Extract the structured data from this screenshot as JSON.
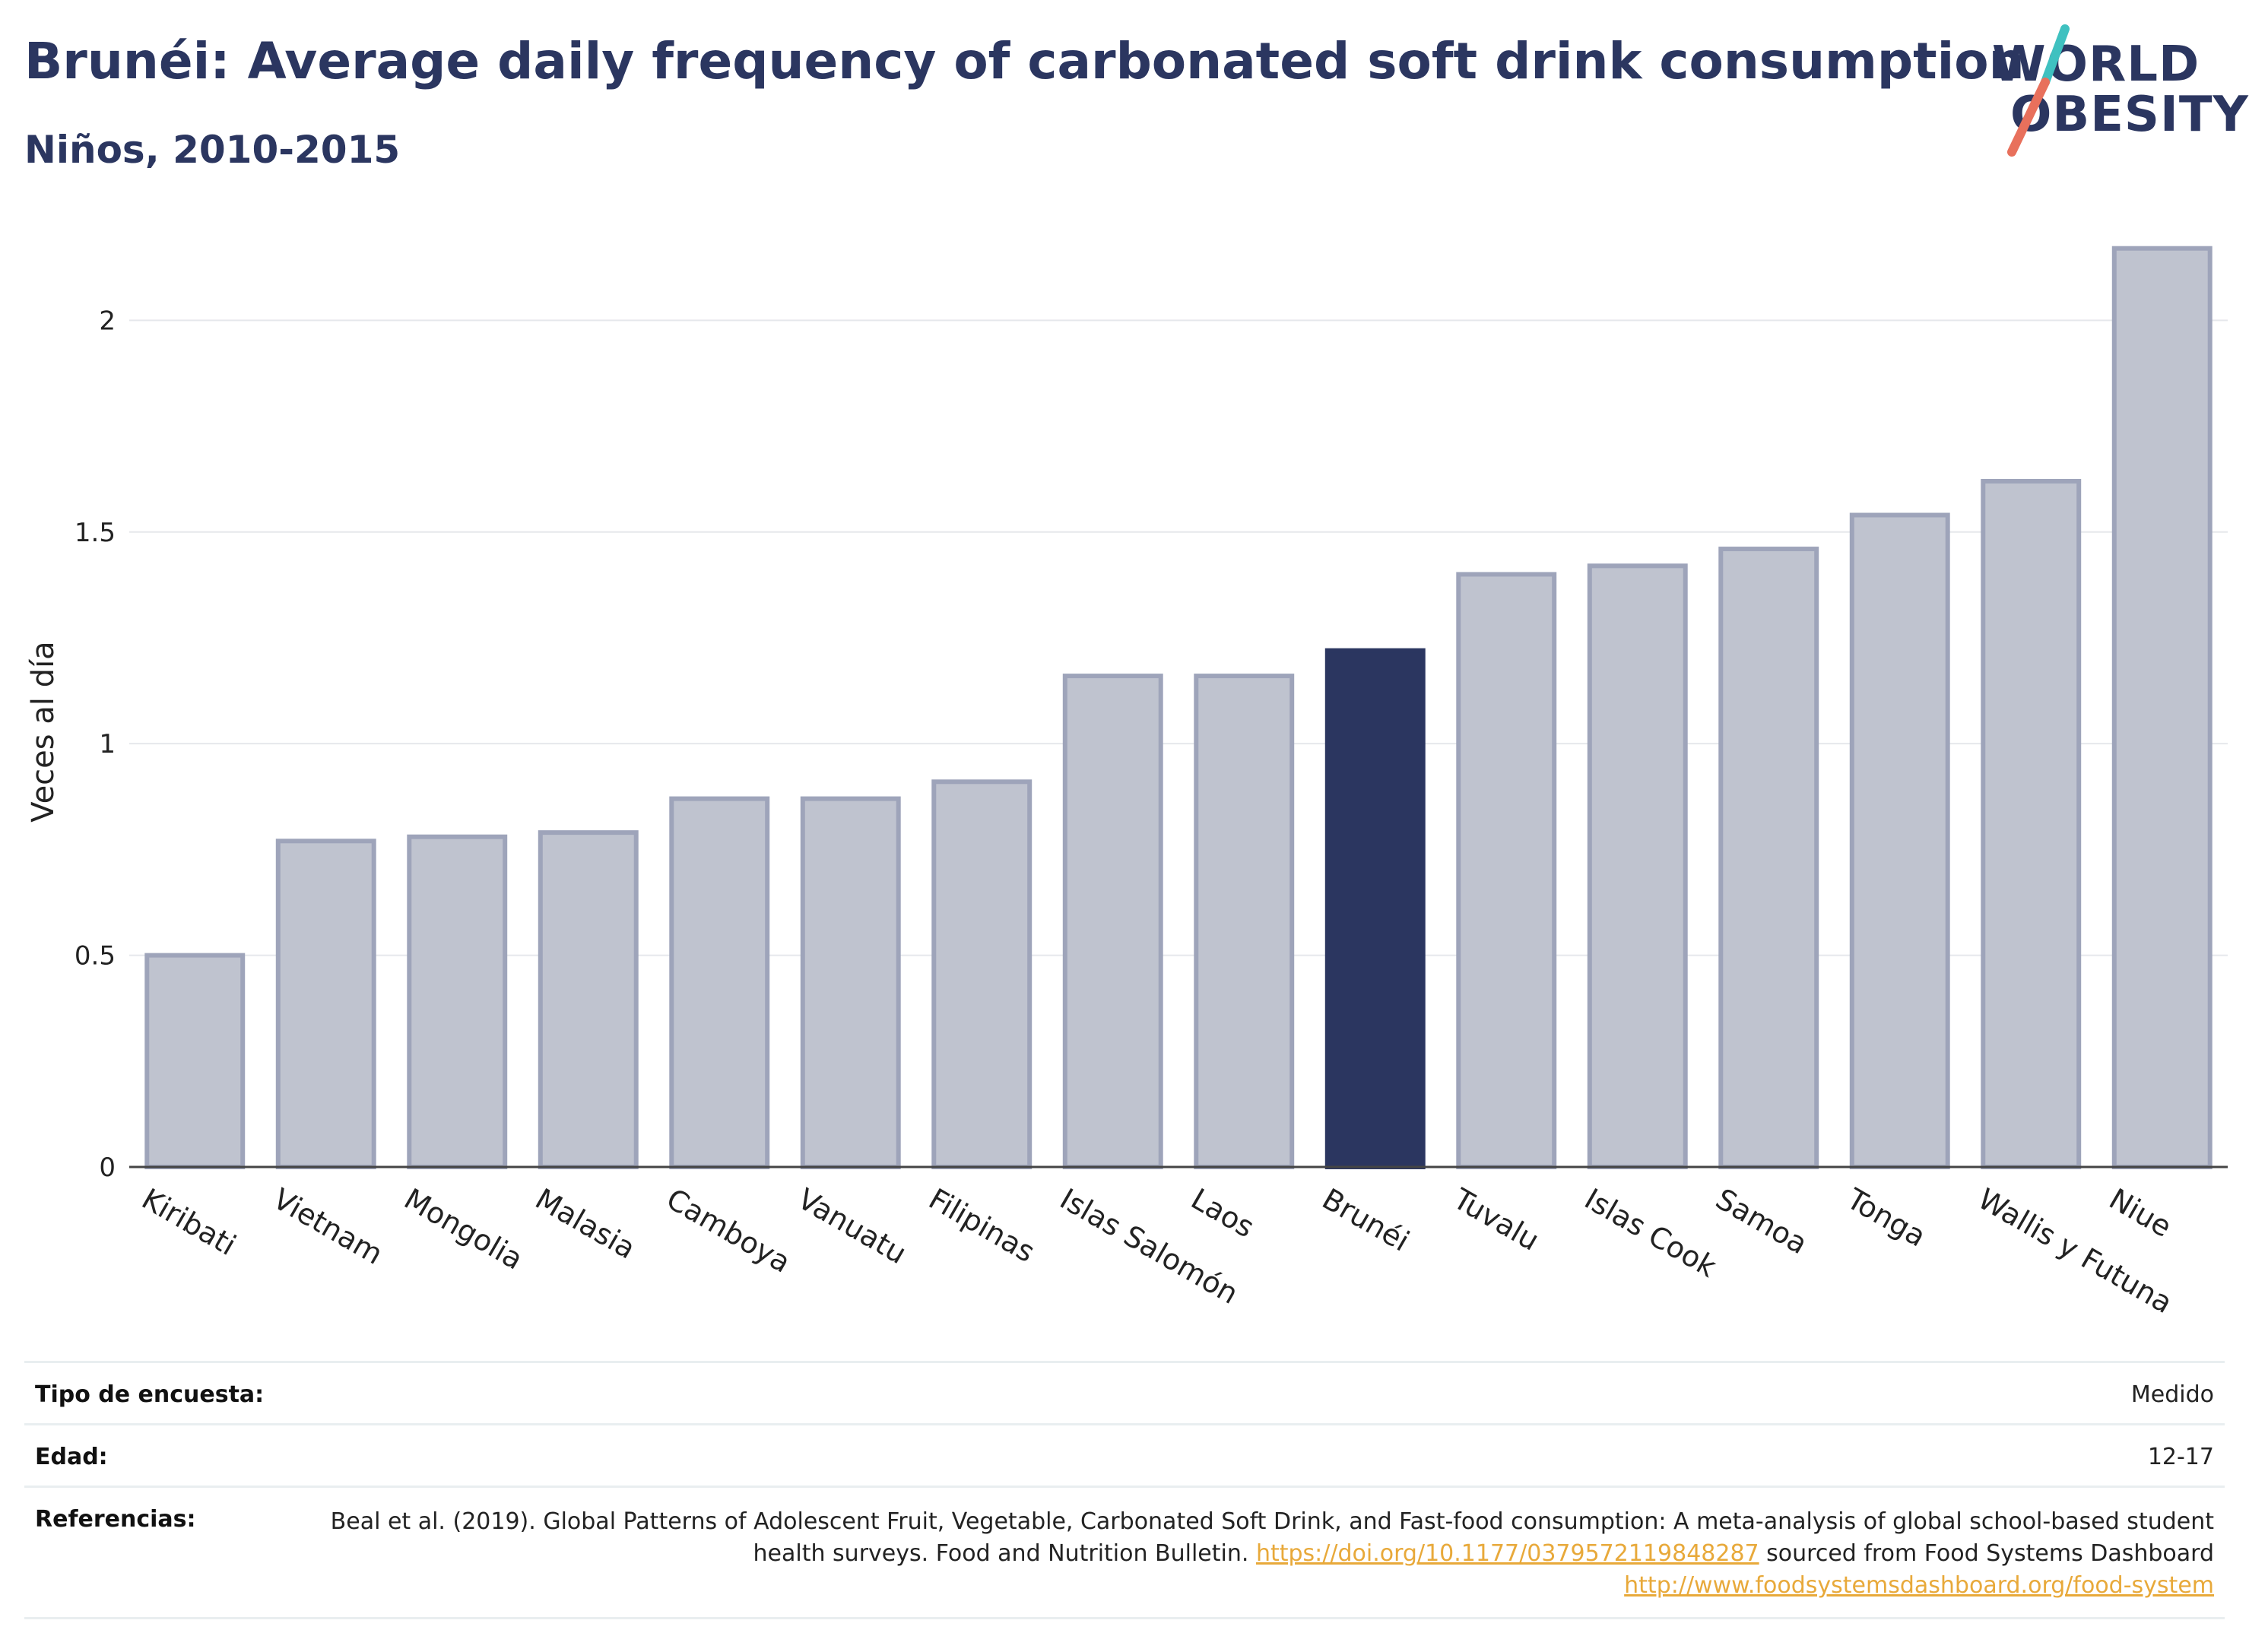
{
  "title": "Brunéi: Average daily frequency of carbonated soft drink consumption",
  "subtitle": "Niños, 2010-2015",
  "logo": {
    "line1": "WORLD",
    "line2": "OBESITY",
    "accent_colors": [
      "#3fc1c0",
      "#e8705c"
    ]
  },
  "colors": {
    "highlight": "#2b3660",
    "bar": "#bfc3cf",
    "bar_edge": "#9ea4ba",
    "link": "#e8a93a"
  },
  "chart_data": {
    "type": "bar",
    "categories": [
      "Kiribati",
      "Vietnam",
      "Mongolia",
      "Malasia",
      "Camboya",
      "Vanuatu",
      "Filipinas",
      "Islas Salomón",
      "Laos",
      "Brunéi",
      "Tuvalu",
      "Islas Cook",
      "Samoa",
      "Tonga",
      "Wallis y Futuna",
      "Niue"
    ],
    "values": [
      0.5,
      0.77,
      0.78,
      0.79,
      0.87,
      0.87,
      0.91,
      1.16,
      1.16,
      1.22,
      1.4,
      1.42,
      1.46,
      1.54,
      1.62,
      2.17
    ],
    "highlight": "Brunéi",
    "ylabel": "Veces al día",
    "xlabel": "",
    "ylim": [
      0,
      2.2
    ],
    "yticks": [
      0,
      0.5,
      1,
      1.5,
      2
    ],
    "ytick_labels": [
      "0",
      "0.5",
      "1",
      "1.5",
      "2"
    ],
    "grid": true
  },
  "info": {
    "survey_label": "Tipo de encuesta:",
    "survey_value": "Medido",
    "age_label": "Edad:",
    "age_value": "12-17",
    "ref_label": "Referencias:",
    "ref_text1": "Beal et al. (2019). Global Patterns of Adolescent Fruit, Vegetable, Carbonated Soft Drink, and Fast-food consumption: A meta-analysis of global school-based student health surveys. Food and Nutrition Bulletin.",
    "ref_link1": "https://doi.org/10.1177/0379572119848287",
    "ref_text2": "sourced from Food Systems Dashboard",
    "ref_link2": "http://www.foodsystemsdashboard.org/food-system"
  }
}
